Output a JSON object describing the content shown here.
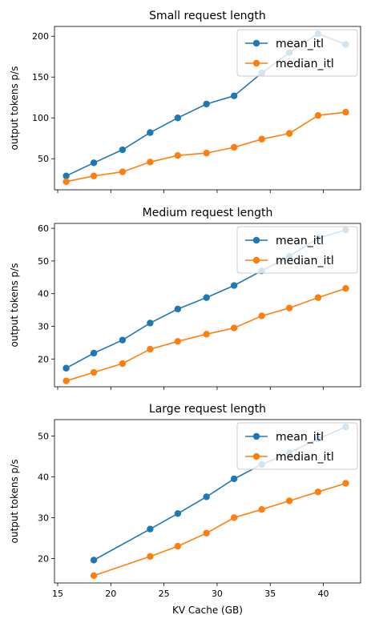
{
  "figure": {
    "xlabel": "KV Cache (GB)"
  },
  "legend": {
    "placement": "upper right"
  },
  "colors": {
    "mean": "#1f77b4",
    "median": "#ff7f0e",
    "axis": "#000000",
    "background": "#ffffff"
  },
  "chart_data": [
    {
      "type": "line",
      "title": "Small request length",
      "xlabel": "",
      "ylabel": "output tokens p/s",
      "xlim": [
        14.7,
        43.5
      ],
      "ylim": [
        12,
        212
      ],
      "xticks": [
        15,
        20,
        25,
        30,
        35,
        40
      ],
      "xtick_labels_visible": false,
      "yticks": [
        50,
        100,
        150,
        200
      ],
      "grid": false,
      "series": [
        {
          "name": "mean_itl",
          "x": [
            15.8,
            18.4,
            21.1,
            23.7,
            26.3,
            29.0,
            31.6,
            34.2,
            36.8,
            39.5,
            42.1
          ],
          "y": [
            29,
            45,
            61,
            82,
            100,
            117,
            127,
            155,
            180,
            203,
            190
          ]
        },
        {
          "name": "median_itl",
          "x": [
            15.8,
            18.4,
            21.1,
            23.7,
            26.3,
            29.0,
            31.6,
            34.2,
            36.8,
            39.5,
            42.1
          ],
          "y": [
            22,
            29,
            34,
            46,
            54,
            57,
            64,
            74,
            81,
            103,
            107
          ]
        }
      ]
    },
    {
      "type": "line",
      "title": "Medium request length",
      "xlabel": "",
      "ylabel": "output tokens p/s",
      "xlim": [
        14.7,
        43.5
      ],
      "ylim": [
        11.5,
        61.5
      ],
      "xticks": [
        15,
        20,
        25,
        30,
        35,
        40
      ],
      "xtick_labels_visible": false,
      "yticks": [
        20,
        30,
        40,
        50,
        60
      ],
      "grid": false,
      "series": [
        {
          "name": "mean_itl",
          "x": [
            15.8,
            18.4,
            21.1,
            23.7,
            26.3,
            29.0,
            31.6,
            34.2,
            36.8,
            39.5,
            42.1
          ],
          "y": [
            17.2,
            21.8,
            25.8,
            31.0,
            35.3,
            38.8,
            42.5,
            47.0,
            51.4,
            57.0,
            59.5
          ]
        },
        {
          "name": "median_itl",
          "x": [
            15.8,
            18.4,
            21.1,
            23.7,
            26.3,
            29.0,
            31.6,
            34.2,
            36.8,
            39.5,
            42.1
          ],
          "y": [
            13.3,
            15.9,
            18.6,
            23.0,
            25.4,
            27.6,
            29.5,
            33.2,
            35.6,
            38.8,
            41.6
          ]
        }
      ]
    },
    {
      "type": "line",
      "title": "Large request length",
      "xlabel": "KV Cache (GB)",
      "ylabel": "output tokens p/s",
      "xlim": [
        14.7,
        43.5
      ],
      "ylim": [
        14,
        54
      ],
      "xticks": [
        15,
        20,
        25,
        30,
        35,
        40
      ],
      "xtick_labels_visible": true,
      "yticks": [
        20,
        30,
        40,
        50
      ],
      "grid": false,
      "series": [
        {
          "name": "mean_itl",
          "x": [
            18.4,
            23.7,
            26.3,
            29.0,
            31.6,
            34.2,
            36.8,
            39.5,
            42.1
          ],
          "y": [
            19.6,
            27.2,
            31.0,
            35.1,
            39.5,
            43.0,
            45.9,
            49.3,
            52.2
          ]
        },
        {
          "name": "median_itl",
          "x": [
            18.4,
            23.7,
            26.3,
            29.0,
            31.6,
            34.2,
            36.8,
            39.5,
            42.1
          ],
          "y": [
            15.8,
            20.5,
            23.0,
            26.2,
            30.0,
            32.0,
            34.1,
            36.3,
            38.4
          ]
        }
      ]
    }
  ]
}
